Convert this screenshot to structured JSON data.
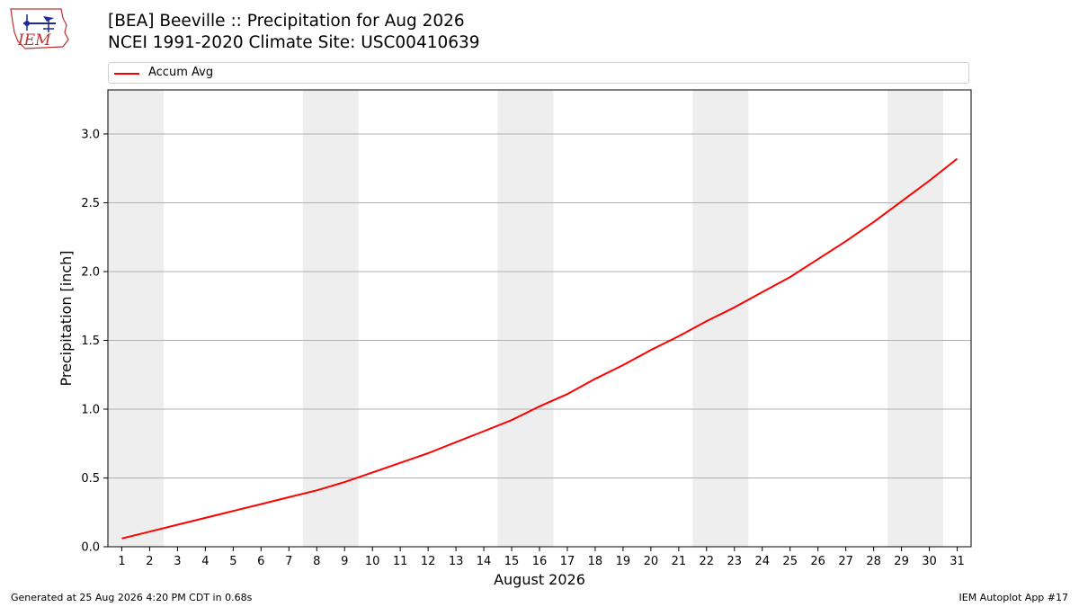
{
  "header": {
    "logo_text": "IEM",
    "title_line1": "[BEA] Beeville :: Precipitation for Aug 2026",
    "title_line2": "NCEI 1991-2020 Climate Site: USC00410639"
  },
  "legend": {
    "label": "Accum Avg",
    "color": "#ff0000"
  },
  "footer": {
    "left": "Generated at 25 Aug 2026 4:20 PM CDT in 0.68s",
    "right": "IEM Autoplot App #17"
  },
  "chart_data": {
    "type": "line",
    "xlabel": "August 2026",
    "ylabel": "Precipitation [inch]",
    "xlim": [
      0.5,
      31.5
    ],
    "ylim": [
      0,
      3.32
    ],
    "yticks": [
      "0.0",
      "0.5",
      "1.0",
      "1.5",
      "2.0",
      "2.5",
      "3.0"
    ],
    "grid": "horizontal",
    "weekend_shading": [
      [
        1,
        2
      ],
      [
        8,
        9
      ],
      [
        15,
        16
      ],
      [
        22,
        23
      ],
      [
        29,
        30
      ]
    ],
    "shade_color": "#eeeeee",
    "series": [
      {
        "name": "Accum Avg",
        "color": "#ff0000",
        "x": [
          1,
          2,
          3,
          4,
          5,
          6,
          7,
          8,
          9,
          10,
          11,
          12,
          13,
          14,
          15,
          16,
          17,
          18,
          19,
          20,
          21,
          22,
          23,
          24,
          25,
          26,
          27,
          28,
          29,
          30,
          31
        ],
        "values": [
          0.06,
          0.11,
          0.16,
          0.21,
          0.26,
          0.31,
          0.36,
          0.41,
          0.47,
          0.54,
          0.61,
          0.68,
          0.76,
          0.84,
          0.92,
          1.02,
          1.11,
          1.22,
          1.32,
          1.43,
          1.53,
          1.64,
          1.74,
          1.85,
          1.96,
          2.09,
          2.22,
          2.36,
          2.51,
          2.66,
          2.82
        ]
      }
    ]
  }
}
